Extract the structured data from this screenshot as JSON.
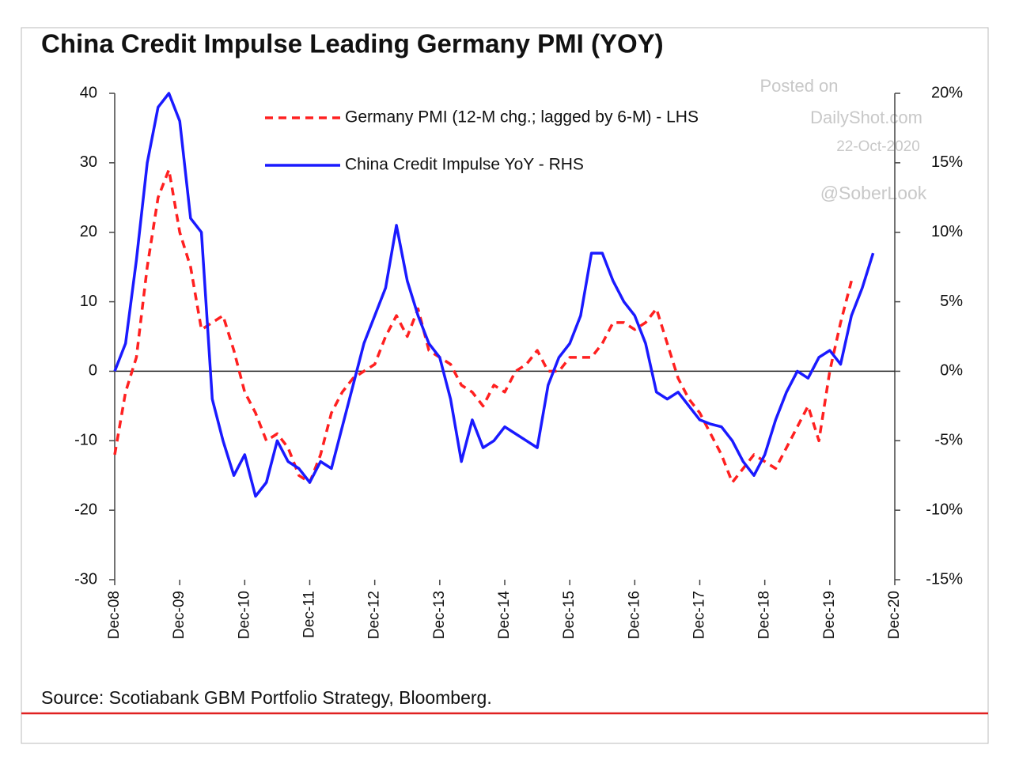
{
  "chart_data": {
    "type": "line",
    "title": "China Credit Impulse Leading Germany PMI (YOY)",
    "source": "Source: Scotiabank GBM Portfolio Strategy, Bloomberg.",
    "annotations": [
      "Posted on",
      "DailyShot.com",
      "22-Oct-2020",
      "@SoberLook"
    ],
    "x": [
      "Dec-08",
      "Feb-09",
      "Apr-09",
      "Jun-09",
      "Aug-09",
      "Oct-09",
      "Dec-09",
      "Feb-10",
      "Apr-10",
      "Jun-10",
      "Aug-10",
      "Oct-10",
      "Dec-10",
      "Feb-11",
      "Apr-11",
      "Jun-11",
      "Aug-11",
      "Oct-11",
      "Dec-11",
      "Feb-12",
      "Apr-12",
      "Jun-12",
      "Aug-12",
      "Oct-12",
      "Dec-12",
      "Feb-13",
      "Apr-13",
      "Jun-13",
      "Aug-13",
      "Oct-13",
      "Dec-13",
      "Feb-14",
      "Apr-14",
      "Jun-14",
      "Aug-14",
      "Oct-14",
      "Dec-14",
      "Feb-15",
      "Apr-15",
      "Jun-15",
      "Aug-15",
      "Oct-15",
      "Dec-15",
      "Feb-16",
      "Apr-16",
      "Jun-16",
      "Aug-16",
      "Oct-16",
      "Dec-16",
      "Feb-17",
      "Apr-17",
      "Jun-17",
      "Aug-17",
      "Oct-17",
      "Dec-17",
      "Feb-18",
      "Apr-18",
      "Jun-18",
      "Aug-18",
      "Oct-18",
      "Dec-18",
      "Feb-19",
      "Apr-19",
      "Jun-19",
      "Aug-19",
      "Oct-19",
      "Dec-19",
      "Feb-20",
      "Apr-20",
      "Jun-20",
      "Aug-20"
    ],
    "xticks": [
      "Dec-08",
      "Dec-09",
      "Dec-10",
      "Dec-11",
      "Dec-12",
      "Dec-13",
      "Dec-14",
      "Dec-15",
      "Dec-16",
      "Dec-17",
      "Dec-18",
      "Dec-19",
      "Dec-20"
    ],
    "ylim": [
      -30,
      40
    ],
    "yticks": [
      -30,
      -20,
      -10,
      0,
      10,
      20,
      30,
      40
    ],
    "y2lim": [
      -15,
      20
    ],
    "y2ticks": [
      {
        "value": -15,
        "label": "-15%"
      },
      {
        "value": -10,
        "label": "-10%"
      },
      {
        "value": -5,
        "label": "-5%"
      },
      {
        "value": 0,
        "label": "0%"
      },
      {
        "value": 5,
        "label": "5%"
      },
      {
        "value": 10,
        "label": "10%"
      },
      {
        "value": 15,
        "label": "15%"
      },
      {
        "value": 20,
        "label": "20%"
      }
    ],
    "series": [
      {
        "name": "Germany PMI (12-M chg.; lagged by 6-M) - LHS",
        "color": "#ff2020",
        "dash": true,
        "values": [
          -12,
          -3,
          2,
          15,
          25,
          29,
          20,
          15,
          6,
          7,
          8,
          3,
          -3,
          -6,
          -10,
          -9,
          -11,
          -15,
          -16,
          -12,
          -6,
          -3,
          -1,
          0,
          1,
          5,
          8,
          5,
          9,
          3,
          2,
          1,
          -2,
          -3,
          -5,
          -2,
          -3,
          0,
          1,
          3,
          0,
          0,
          2,
          2,
          2,
          4,
          7,
          7,
          6,
          7,
          9,
          4,
          -1,
          -4,
          -6,
          -9,
          -12,
          -16,
          -14,
          -12,
          -13,
          -14,
          -11,
          -8,
          -5,
          -10,
          0,
          7,
          13,
          null,
          null
        ]
      },
      {
        "name": "China Credit Impulse YoY - RHS",
        "color": "#1a1aff",
        "axis": "y2",
        "values": [
          0,
          2,
          8,
          15,
          19,
          20,
          18,
          11,
          10,
          -2,
          -5,
          -7.5,
          -6,
          -9,
          -8,
          -5,
          -6.5,
          -7,
          -8,
          -6.5,
          -7,
          -4,
          -1,
          2,
          4,
          6,
          10.5,
          6.5,
          4,
          2,
          1,
          -2,
          -6.5,
          -3.5,
          -5.5,
          -5,
          -4,
          -4.5,
          -5,
          -5.5,
          -1,
          1,
          2,
          4,
          8.5,
          8.5,
          6.5,
          5,
          4,
          2,
          -1.5,
          -2,
          -1.5,
          -2.5,
          -3.5,
          -3.8,
          -4,
          -5,
          -6.5,
          -7.5,
          -6,
          -3.5,
          -1.5,
          0,
          -0.5,
          1,
          1.5,
          0.5,
          4,
          6,
          8.5
        ]
      }
    ]
  }
}
